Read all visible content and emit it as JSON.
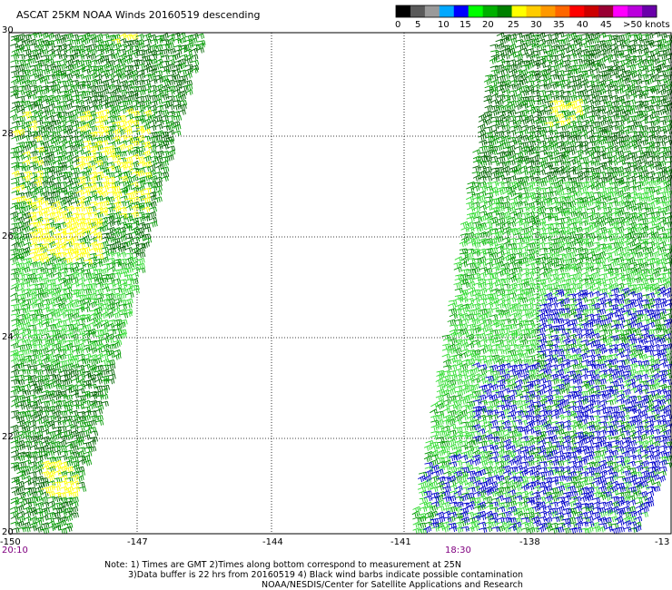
{
  "title": "ASCAT 25KM NOAA Winds 20160519 descending",
  "colorbar": {
    "colors": [
      "#000000",
      "#5a5a5a",
      "#9a9a9a",
      "#00a8ff",
      "#0000ff",
      "#00ff00",
      "#00b000",
      "#008000",
      "#ffff00",
      "#ffcc00",
      "#ff9900",
      "#ff6600",
      "#ff0000",
      "#cc0000",
      "#990033",
      "#ff00ff",
      "#bb00dd",
      "#6a00aa"
    ],
    "ticks": [
      "0",
      "5",
      "10",
      "15",
      "20",
      "25",
      "30",
      "35",
      "40",
      "45",
      ">50 knots"
    ]
  },
  "map": {
    "lat_labels": [
      "30",
      "28",
      "26",
      "24",
      "22",
      "20"
    ],
    "lon_labels": [
      "-150",
      "-147",
      "-144",
      "-141",
      "-138",
      "-13"
    ],
    "time_labels": {
      "left": "20:10",
      "right": "18:30"
    },
    "swath_colors": {
      "dark_green": "#006400",
      "green": "#009900",
      "light_green": "#33dd33",
      "yellow": "#ffff00",
      "blue": "#0000cc",
      "black": "#000000"
    }
  },
  "notes": {
    "line1": "Note: 1) Times are GMT 2)Times along bottom correspond to measurement at 25N",
    "line2": "3)Data buffer is 22 hrs from 20160519 4) Black wind barbs indicate possible contamination",
    "line3": "NOAA/NESDIS/Center for Satellite Applications and Research"
  }
}
